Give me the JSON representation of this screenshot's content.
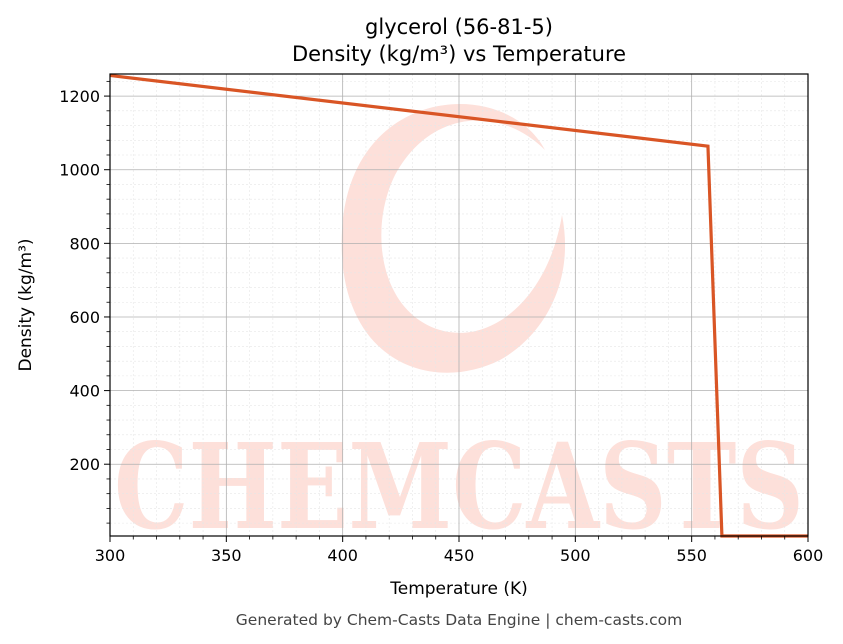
{
  "chart_data": {
    "type": "line",
    "title_line1": "glycerol (56-81-5)",
    "title_line2": "Density (kg/m³) vs Temperature",
    "xlabel": "Temperature (K)",
    "ylabel": "Density (kg/m³)",
    "xlim": [
      300,
      600
    ],
    "ylim": [
      5,
      1260
    ],
    "x_ticks": [
      300,
      350,
      400,
      450,
      500,
      550,
      600
    ],
    "y_ticks": [
      200,
      400,
      600,
      800,
      1000,
      1200
    ],
    "grid": true,
    "series": [
      {
        "color": "#d95525",
        "x": [
          300,
          557,
          563,
          600
        ],
        "y": [
          1256,
          1064,
          5,
          5
        ]
      }
    ]
  },
  "watermark": {
    "text": "CHEMCASTS",
    "color": "#fde0da"
  },
  "footer": {
    "text": "Generated by Chem-Casts Data Engine | chem-casts.com"
  }
}
